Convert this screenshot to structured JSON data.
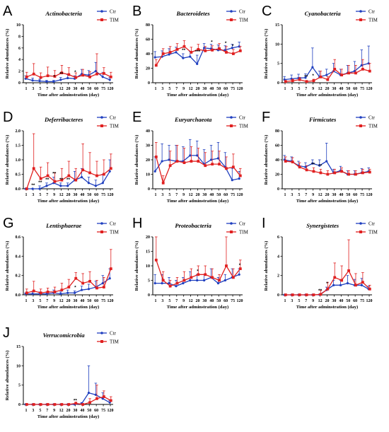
{
  "common": {
    "x_ticks": [
      "1",
      "3",
      "5",
      "7",
      "9",
      "12",
      "20",
      "30",
      "40",
      "50",
      "60",
      "75",
      "120"
    ],
    "xlabel": "Time after adminstration (day)",
    "ylabel": "Relative abundances (%)",
    "series_names": [
      "Ctr",
      "TIM"
    ],
    "colors": {
      "Ctr": "#1f3fbf",
      "TIM": "#e02020"
    }
  },
  "chart_data": [
    {
      "letter": "A",
      "title": "Actinobacteria",
      "type": "line",
      "ylim": [
        0,
        10
      ],
      "yticks": [
        0,
        2,
        4,
        6,
        8,
        10
      ],
      "series": [
        {
          "name": "Ctr",
          "values": [
            0.7,
            0.4,
            0.3,
            0.2,
            0.2,
            0.5,
            0.8,
            0.7,
            1.5,
            1.3,
            2.0,
            1.0,
            0.5
          ],
          "errors": [
            0.5,
            0.4,
            0.3,
            0.2,
            0.2,
            0.4,
            0.6,
            0.5,
            0.8,
            0.8,
            1.5,
            0.8,
            0.4
          ]
        },
        {
          "name": "TIM",
          "values": [
            1.0,
            1.5,
            0.9,
            1.2,
            1.1,
            1.7,
            1.4,
            0.9,
            1.3,
            1.0,
            1.5,
            1.6,
            1.0
          ],
          "errors": [
            0.8,
            1.8,
            0.8,
            1.5,
            1.0,
            1.3,
            1.2,
            0.8,
            1.0,
            0.9,
            3.5,
            1.0,
            0.8
          ]
        }
      ],
      "sig": [
        {
          "index": 4,
          "label": "*"
        },
        {
          "index": 5,
          "label": "**"
        },
        {
          "index": 7,
          "label": "*"
        }
      ]
    },
    {
      "letter": "B",
      "title": "Bacteroidetes",
      "type": "line",
      "ylim": [
        0,
        80
      ],
      "yticks": [
        0,
        20,
        40,
        60,
        80
      ],
      "series": [
        {
          "name": "Ctr",
          "values": [
            35,
            36,
            39,
            42,
            34,
            36,
            26,
            48,
            47,
            45,
            45,
            48,
            50
          ],
          "errors": [
            8,
            8,
            8,
            7,
            6,
            7,
            12,
            6,
            6,
            7,
            6,
            5,
            6
          ]
        },
        {
          "name": "TIM",
          "values": [
            24,
            40,
            42,
            46,
            50,
            42,
            46,
            44,
            45,
            47,
            42,
            40,
            44
          ],
          "errors": [
            8,
            7,
            8,
            8,
            8,
            7,
            7,
            6,
            6,
            7,
            8,
            6,
            6
          ]
        }
      ],
      "sig": [
        {
          "index": 4,
          "label": "**"
        },
        {
          "index": 6,
          "label": "***"
        },
        {
          "index": 8,
          "label": "*"
        },
        {
          "index": 10,
          "label": "*"
        },
        {
          "index": 11,
          "label": "*"
        }
      ]
    },
    {
      "letter": "C",
      "title": "Cyanobacteria",
      "type": "line",
      "ylim": [
        0,
        15
      ],
      "yticks": [
        0,
        5,
        10,
        15
      ],
      "series": [
        {
          "name": "Ctr",
          "values": [
            0.8,
            1.0,
            1.2,
            1.3,
            4.0,
            1.5,
            2.0,
            3.0,
            2.0,
            2.5,
            3.0,
            4.5,
            5.0
          ],
          "errors": [
            0.8,
            1.0,
            1.0,
            1.0,
            5.0,
            1.5,
            1.5,
            2.0,
            1.5,
            2.0,
            2.5,
            4.0,
            4.5
          ]
        },
        {
          "name": "TIM",
          "values": [
            0.3,
            0.5,
            0.8,
            0.3,
            0.5,
            1.5,
            0.8,
            3.5,
            2.0,
            2.5,
            2.5,
            3.5,
            3.0
          ],
          "errors": [
            0.3,
            0.4,
            0.6,
            0.3,
            0.4,
            1.5,
            0.8,
            2.5,
            1.5,
            2.0,
            2.0,
            2.5,
            2.0
          ]
        }
      ],
      "sig": [
        {
          "index": 3,
          "label": "**"
        },
        {
          "index": 4,
          "label": "*"
        }
      ]
    },
    {
      "letter": "D",
      "title": "Deferribacteres",
      "type": "line",
      "ylim": [
        0,
        2.0
      ],
      "yticks": [
        0.0,
        0.5,
        1.0,
        1.5,
        2.0
      ],
      "series": [
        {
          "name": "Ctr",
          "values": [
            0.0,
            0.0,
            0.0,
            0.1,
            0.2,
            0.1,
            0.1,
            0.3,
            0.4,
            0.2,
            0.1,
            0.2,
            0.6
          ],
          "errors": [
            0.0,
            0.0,
            0.1,
            0.1,
            0.2,
            0.1,
            0.1,
            0.3,
            0.3,
            0.2,
            0.2,
            0.3,
            0.4
          ]
        },
        {
          "name": "TIM",
          "values": [
            0.0,
            0.7,
            0.35,
            0.45,
            0.25,
            0.3,
            0.45,
            0.3,
            0.65,
            0.55,
            0.45,
            0.5,
            0.7
          ],
          "errors": [
            0.0,
            1.2,
            0.4,
            0.45,
            0.3,
            0.4,
            0.5,
            0.4,
            0.9,
            0.7,
            0.5,
            0.5,
            0.5
          ]
        }
      ],
      "sig": [
        {
          "index": 1,
          "label": "**"
        },
        {
          "index": 2,
          "label": "**"
        },
        {
          "index": 3,
          "label": "**"
        },
        {
          "index": 4,
          "label": "**"
        },
        {
          "index": 5,
          "label": "**"
        },
        {
          "index": 6,
          "label": "**"
        }
      ]
    },
    {
      "letter": "E",
      "title": "Euryarchaeota",
      "type": "line",
      "ylim": [
        0,
        40
      ],
      "yticks": [
        0,
        10,
        20,
        30,
        40
      ],
      "series": [
        {
          "name": "Ctr",
          "values": [
            12,
            19,
            20,
            19,
            19,
            23,
            23,
            17,
            20,
            21,
            15,
            6,
            7
          ],
          "errors": [
            10,
            12,
            10,
            11,
            10,
            11,
            10,
            10,
            10,
            11,
            10,
            8,
            5
          ]
        },
        {
          "name": "TIM",
          "values": [
            22,
            4,
            16,
            19,
            18,
            19,
            19,
            16,
            17,
            17,
            14,
            15,
            9
          ],
          "errors": [
            10,
            5,
            10,
            11,
            10,
            10,
            9,
            9,
            9,
            9,
            8,
            9,
            5
          ]
        }
      ],
      "sig": []
    },
    {
      "letter": "F",
      "title": "Firmicutes",
      "type": "line",
      "ylim": [
        0,
        80
      ],
      "yticks": [
        0,
        20,
        40,
        60,
        80
      ],
      "series": [
        {
          "name": "Ctr",
          "values": [
            40,
            38,
            32,
            30,
            35,
            32,
            38,
            22,
            25,
            20,
            20,
            22,
            24
          ],
          "errors": [
            6,
            6,
            6,
            6,
            5,
            8,
            25,
            5,
            6,
            5,
            5,
            6,
            5
          ]
        },
        {
          "name": "TIM",
          "values": [
            38,
            37,
            30,
            26,
            24,
            22,
            20,
            22,
            24,
            20,
            20,
            22,
            23
          ],
          "errors": [
            6,
            6,
            6,
            6,
            5,
            5,
            5,
            5,
            5,
            5,
            5,
            5,
            4
          ]
        }
      ],
      "sig": [
        {
          "index": 4,
          "label": "**"
        },
        {
          "index": 5,
          "label": "**"
        }
      ]
    },
    {
      "letter": "G",
      "title": "Lentisphaerae",
      "type": "line",
      "ylim": [
        0,
        0.6
      ],
      "yticks": [
        0.0,
        0.2,
        0.4,
        0.6
      ],
      "series": [
        {
          "name": "Ctr",
          "values": [
            0.01,
            0.01,
            0.01,
            0.01,
            0.02,
            0.01,
            0.02,
            0.02,
            0.05,
            0.06,
            0.08,
            0.12,
            0.17
          ],
          "errors": [
            0.01,
            0.02,
            0.02,
            0.02,
            0.03,
            0.02,
            0.03,
            0.02,
            0.04,
            0.05,
            0.06,
            0.08,
            0.1
          ]
        },
        {
          "name": "TIM",
          "values": [
            0.02,
            0.04,
            0.02,
            0.03,
            0.03,
            0.05,
            0.08,
            0.17,
            0.12,
            0.14,
            0.07,
            0.08,
            0.27
          ],
          "errors": [
            0.04,
            0.1,
            0.04,
            0.04,
            0.05,
            0.07,
            0.08,
            0.06,
            0.1,
            0.1,
            0.08,
            0.1,
            0.2
          ]
        }
      ],
      "sig": [
        {
          "index": 7,
          "label": "*"
        }
      ]
    },
    {
      "letter": "H",
      "title": "Proteobacteria",
      "type": "line",
      "ylim": [
        0,
        20
      ],
      "yticks": [
        0,
        5,
        10,
        15,
        20
      ],
      "series": [
        {
          "name": "Ctr",
          "values": [
            4,
            4,
            4,
            3,
            4,
            5,
            5,
            5,
            6,
            4,
            5,
            6,
            7
          ],
          "errors": [
            3,
            3,
            2,
            2,
            2,
            3,
            2,
            2,
            3,
            2,
            2,
            3,
            2
          ]
        },
        {
          "name": "TIM",
          "values": [
            12,
            5,
            3,
            4,
            5,
            6,
            7,
            7,
            6,
            5,
            10,
            6,
            9
          ],
          "errors": [
            12,
            3,
            2,
            2,
            3,
            3,
            3,
            3,
            3,
            2,
            10,
            3,
            3
          ]
        }
      ],
      "sig": [
        {
          "index": 6,
          "label": "*"
        },
        {
          "index": 12,
          "label": "*"
        }
      ]
    },
    {
      "letter": "I",
      "title": "Synergistetes",
      "type": "line",
      "ylim": [
        0,
        6
      ],
      "yticks": [
        0,
        2,
        4,
        6
      ],
      "series": [
        {
          "name": "Ctr",
          "values": [
            0.0,
            0.0,
            0.0,
            0.0,
            0.0,
            0.02,
            0.5,
            1.0,
            1.0,
            1.2,
            1.0,
            1.0,
            0.6
          ],
          "errors": [
            0.0,
            0.0,
            0.0,
            0.0,
            0.0,
            0.05,
            0.3,
            0.5,
            0.5,
            0.8,
            0.6,
            0.7,
            0.3
          ]
        },
        {
          "name": "TIM",
          "values": [
            0.0,
            0.0,
            0.0,
            0.0,
            0.0,
            0.05,
            0.6,
            1.8,
            1.5,
            2.5,
            1.0,
            1.3,
            0.6
          ],
          "errors": [
            0.0,
            0.0,
            0.0,
            0.0,
            0.0,
            0.4,
            0.7,
            1.5,
            1.5,
            3.2,
            1.2,
            1.0,
            0.4
          ]
        }
      ],
      "sig": [
        {
          "index": 5,
          "label": "**"
        },
        {
          "index": 6,
          "label": "*"
        }
      ]
    },
    {
      "letter": "J",
      "title": "Verrucomicrobia",
      "type": "line",
      "ylim": [
        0,
        15
      ],
      "yticks": [
        0,
        5,
        10,
        15
      ],
      "series": [
        {
          "name": "Ctr",
          "values": [
            0.0,
            0.0,
            0.0,
            0.0,
            0.0,
            0.0,
            0.0,
            0.0,
            0.2,
            3.0,
            2.5,
            1.5,
            0.5
          ],
          "errors": [
            0.0,
            0.0,
            0.0,
            0.0,
            0.0,
            0.0,
            0.0,
            0.1,
            0.3,
            7.0,
            3.0,
            1.5,
            0.5
          ]
        },
        {
          "name": "TIM",
          "values": [
            0.0,
            0.0,
            0.0,
            0.0,
            0.0,
            0.0,
            0.0,
            0.3,
            0.0,
            0.5,
            1.5,
            2.0,
            1.0
          ],
          "errors": [
            0.0,
            0.0,
            0.0,
            0.0,
            0.0,
            0.0,
            0.0,
            0.3,
            0.1,
            1.0,
            3.5,
            1.5,
            1.0
          ]
        }
      ],
      "sig": [
        {
          "index": 7,
          "label": "**"
        }
      ]
    }
  ]
}
